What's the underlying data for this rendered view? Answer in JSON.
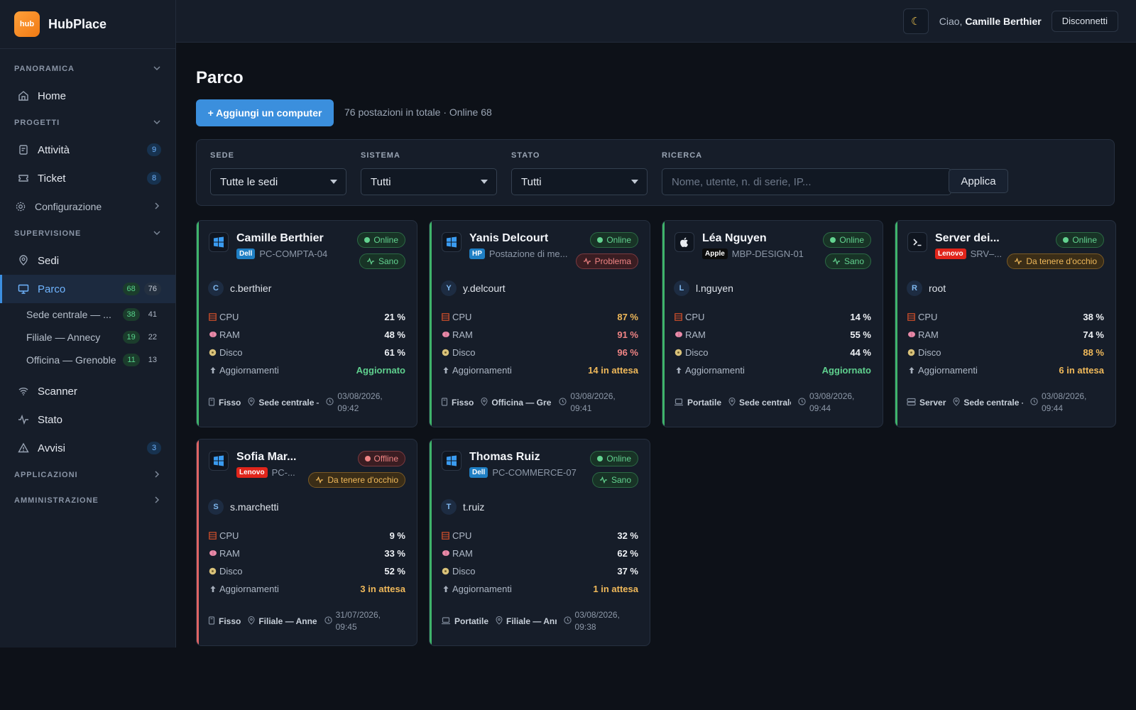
{
  "app": {
    "logo_text": "hub",
    "name": "HubPlace"
  },
  "header": {
    "theme_icon": "moon-icon",
    "greeting": "Ciao,",
    "user": "Camille Berthier",
    "logout": "Disconnetti"
  },
  "sidebar": {
    "sections": {
      "panoramica": "PANORAMICA",
      "progetti": "PROGETTI",
      "supervisione": "SUPERVISIONE",
      "applicazioni": "APPLICAZIONI",
      "amministrazione": "AMMINISTRAZIONE"
    },
    "items": {
      "home": {
        "label": "Home"
      },
      "attivita": {
        "label": "Attività",
        "badge": "9"
      },
      "ticket": {
        "label": "Ticket",
        "badge": "8"
      },
      "configurazione": {
        "label": "Configurazione"
      },
      "sedi": {
        "label": "Sedi"
      },
      "parco": {
        "label": "Parco",
        "online": "68",
        "total": "76"
      },
      "scanner": {
        "label": "Scanner"
      },
      "stato": {
        "label": "Stato"
      },
      "avvisi": {
        "label": "Avvisi",
        "badge": "3"
      }
    },
    "sub_sites": [
      {
        "label": "Sede centrale — ...",
        "online": "38",
        "total": "41"
      },
      {
        "label": "Filiale — Annecy",
        "online": "19",
        "total": "22"
      },
      {
        "label": "Officina — Grenoble",
        "online": "11",
        "total": "13"
      }
    ]
  },
  "page": {
    "title": "Parco",
    "add_button": "+ Aggiungi un computer",
    "summary": "76 postazioni in totale · Online 68"
  },
  "filters": {
    "sede": {
      "label": "SEDE",
      "value": "Tutte le sedi"
    },
    "sistema": {
      "label": "SISTEMA",
      "value": "Tutti"
    },
    "stato": {
      "label": "STATO",
      "value": "Tutti"
    },
    "ricerca": {
      "label": "RICERCA",
      "placeholder": "Nome, utente, n. di serie, IP..."
    },
    "apply": "Applica"
  },
  "metric_labels": {
    "cpu": "CPU",
    "ram": "RAM",
    "disk": "Disco",
    "updates": "Aggiornamenti"
  },
  "cards": [
    {
      "name": "Camille Berthier",
      "os": "windows",
      "brand": "Dell",
      "brand_color": "#1f7fc4",
      "model": "PC-COMPTA-04",
      "status": "Online",
      "health": "Sano",
      "user_initial": "C",
      "user": "c.berthier",
      "cpu": "21 %",
      "ram": "48 %",
      "disk": "61 %",
      "updates": "Aggiornato",
      "type": "Fisso",
      "site": "Sede centrale —",
      "time": "03/08/2026, 09:42"
    },
    {
      "name": "Yanis Delcourt",
      "os": "windows",
      "brand": "HP",
      "brand_color": "#1f7fc4",
      "model": "Postazione di me...",
      "status": "Online",
      "health": "Problema",
      "user_initial": "Y",
      "user": "y.delcourt",
      "cpu": "87 %",
      "ram": "91 %",
      "disk": "96 %",
      "updates": "14 in attesa",
      "type": "Fisso",
      "site": "Officina — Gren",
      "time": "03/08/2026, 09:41"
    },
    {
      "name": "Léa Nguyen",
      "os": "apple",
      "brand": "Apple",
      "brand_color": "#0b0b0b",
      "model": "MBP-DESIGN-01",
      "status": "Online",
      "health": "Sano",
      "user_initial": "L",
      "user": "l.nguyen",
      "cpu": "14 %",
      "ram": "55 %",
      "disk": "44 %",
      "updates": "Aggiornato",
      "type": "Portatile",
      "site": "Sede centrale",
      "time": "03/08/2026, 09:44"
    },
    {
      "name": "Server dei...",
      "os": "terminal",
      "brand": "Lenovo",
      "brand_color": "#e1251b",
      "model": "SRV–...",
      "status": "Online",
      "health": "Da tenere d'occhio",
      "user_initial": "R",
      "user": "root",
      "cpu": "38 %",
      "ram": "74 %",
      "disk": "88 %",
      "updates": "6 in attesa",
      "type": "Server",
      "site": "Sede centrale –",
      "time": "03/08/2026, 09:44"
    },
    {
      "name": "Sofia Mar...",
      "os": "windows",
      "brand": "Lenovo",
      "brand_color": "#e1251b",
      "model": "PC-...",
      "status": "Offline",
      "health": "Da tenere d'occhio",
      "user_initial": "S",
      "user": "s.marchetti",
      "cpu": "9 %",
      "ram": "33 %",
      "disk": "52 %",
      "updates": "3 in attesa",
      "type": "Fisso",
      "site": "Filiale — Anne",
      "time": "31/07/2026, 09:45"
    },
    {
      "name": "Thomas Ruiz",
      "os": "windows",
      "brand": "Dell",
      "brand_color": "#1f7fc4",
      "model": "PC-COMMERCE-07",
      "status": "Online",
      "health": "Sano",
      "user_initial": "T",
      "user": "t.ruiz",
      "cpu": "32 %",
      "ram": "62 %",
      "disk": "37 %",
      "updates": "1 in attesa",
      "type": "Portatile",
      "site": "Filiale — Anr",
      "time": "03/08/2026, 09:38"
    }
  ],
  "colors": {
    "accent": "#3b8fdd",
    "online": "#63d390",
    "problem": "#f08484",
    "warning": "#f0b95a"
  }
}
